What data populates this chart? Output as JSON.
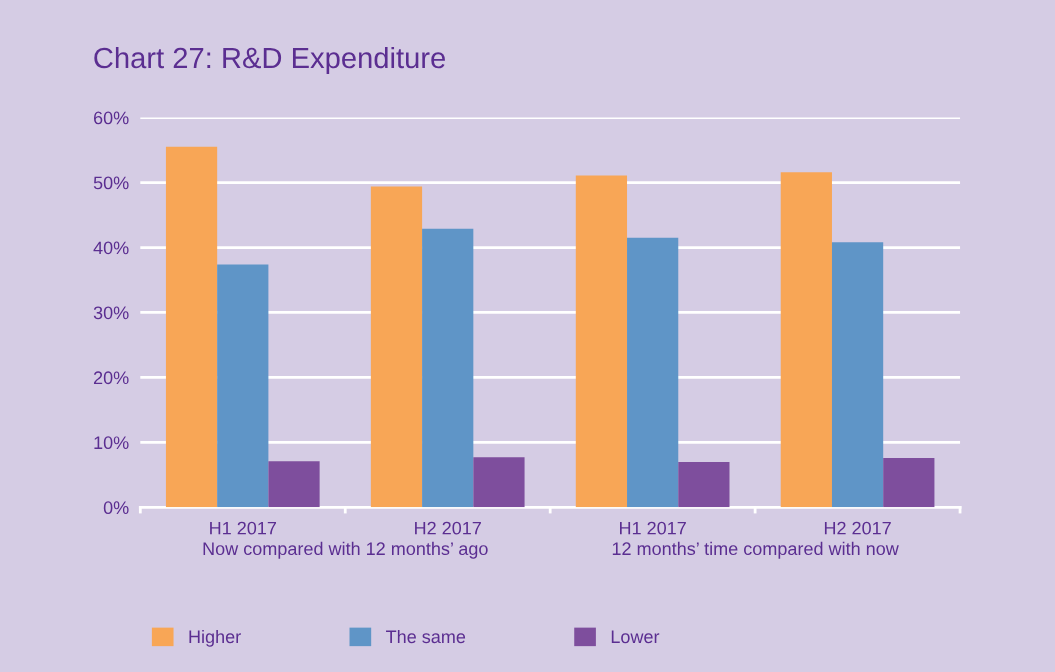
{
  "chart_data": {
    "type": "bar",
    "title": "Chart 27: R&D Expenditure",
    "categories": [
      "H1 2017",
      "H2 2017",
      "H1 2017",
      "H2 2017"
    ],
    "series": [
      {
        "name": "Higher",
        "color": "#f8a656",
        "values": [
          55.5,
          49.4,
          51.1,
          51.6
        ]
      },
      {
        "name": "The same",
        "color": "#5f95c7",
        "values": [
          37.4,
          42.9,
          41.5,
          40.8
        ]
      },
      {
        "name": "Lower",
        "color": "#7e4e9d",
        "values": [
          7.1,
          7.7,
          7.0,
          7.6
        ]
      }
    ],
    "annotations": [
      "Now compared with 12 months’ ago",
      "12 months’ time compared with now"
    ],
    "ylim": [
      0,
      60
    ],
    "yticks": [
      {
        "value": 0,
        "label": "0%"
      },
      {
        "value": 10,
        "label": "10%"
      },
      {
        "value": 20,
        "label": "20%"
      },
      {
        "value": 30,
        "label": "30%"
      },
      {
        "value": 40,
        "label": "40%"
      },
      {
        "value": 50,
        "label": "50%"
      },
      {
        "value": 60,
        "label": "60%"
      }
    ],
    "grid": "y",
    "legend": "bottom"
  }
}
